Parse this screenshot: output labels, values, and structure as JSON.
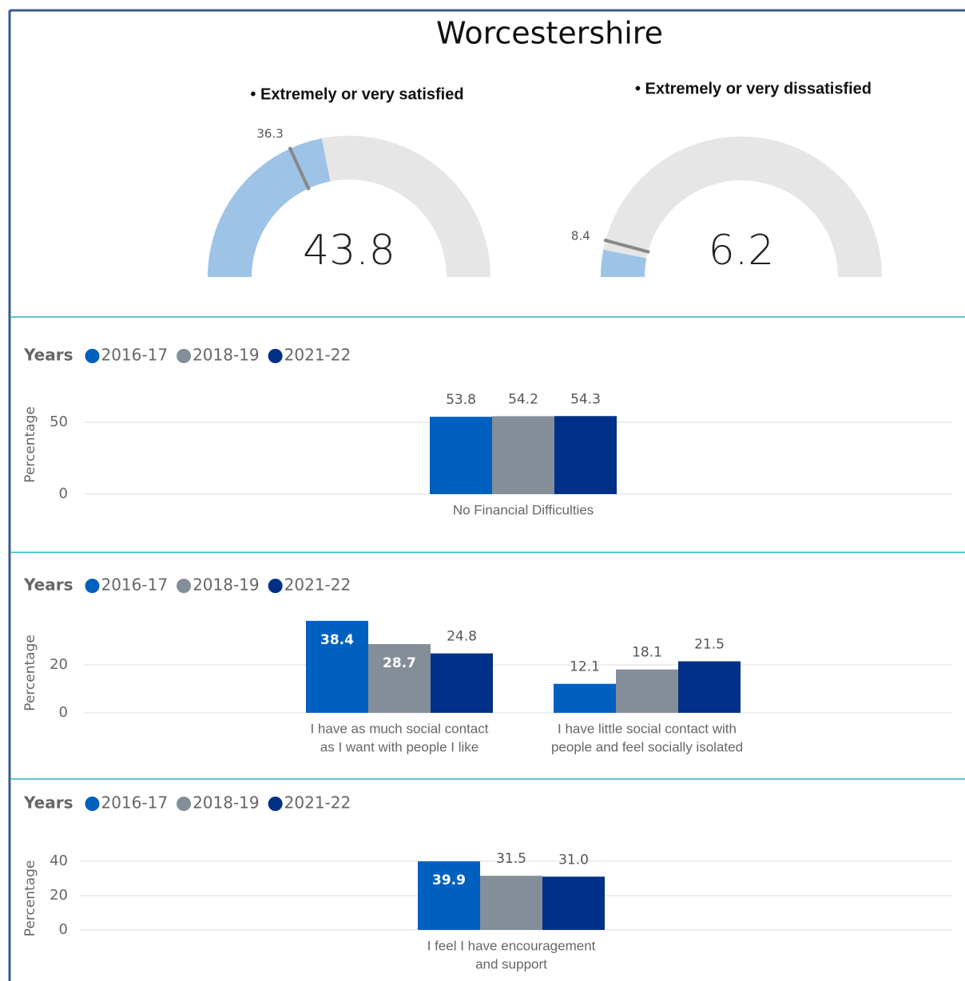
{
  "title": "Worcestershire",
  "chart_data": [
    {
      "type": "gauge",
      "title": "• Extremely or very satisfied",
      "value": 43.8,
      "target": 36.3,
      "ylim": [
        0,
        100
      ],
      "color": "#9dc3e6",
      "track_color": "#e6e6e6",
      "target_color": "#888888"
    },
    {
      "type": "gauge",
      "title": "• Extremely or very dissatisfied",
      "value": 6.2,
      "target": 8.4,
      "ylim": [
        0,
        100
      ],
      "color": "#9dc3e6",
      "track_color": "#e6e6e6",
      "target_color": "#888888"
    },
    {
      "type": "bar",
      "legend_title": "Years",
      "y_label": "Percentage",
      "categories": [
        [
          "No Financial Difficulties"
        ]
      ],
      "series": [
        {
          "name": "2016-17",
          "color": "#0060c0",
          "values": [
            53.8
          ]
        },
        {
          "name": "2018-19",
          "color": "#848e98",
          "values": [
            54.2
          ]
        },
        {
          "name": "2021-22",
          "color": "#003087",
          "values": [
            54.3
          ]
        }
      ],
      "ylim": [
        0,
        80
      ],
      "yticks": [
        0,
        50
      ],
      "grid": true
    },
    {
      "type": "bar",
      "legend_title": "Years",
      "y_label": "Percentage",
      "categories": [
        [
          "I have as much social contact",
          "as I want with people I like"
        ],
        [
          "I have little social contact with",
          "people and feel socially isolated"
        ]
      ],
      "series": [
        {
          "name": "2016-17",
          "color": "#0060c0",
          "values": [
            38.4,
            12.1
          ]
        },
        {
          "name": "2018-19",
          "color": "#848e98",
          "values": [
            28.7,
            18.1
          ]
        },
        {
          "name": "2021-22",
          "color": "#003087",
          "values": [
            24.8,
            21.5
          ]
        }
      ],
      "ylim": [
        0,
        40
      ],
      "yticks": [
        0,
        20
      ],
      "grid": true
    },
    {
      "type": "bar",
      "legend_title": "Years",
      "y_label": "Percentage",
      "categories": [
        [
          "I feel I have encouragement",
          "and support"
        ]
      ],
      "series": [
        {
          "name": "2016-17",
          "color": "#0060c0",
          "values": [
            39.9
          ]
        },
        {
          "name": "2018-19",
          "color": "#848e98",
          "values": [
            31.5
          ]
        },
        {
          "name": "2021-22",
          "color": "#003087",
          "values": [
            31.0
          ],
          "value_labels": [
            "31.0"
          ]
        }
      ],
      "ylim": [
        0,
        46
      ],
      "yticks": [
        0,
        20,
        40
      ],
      "grid": true
    }
  ]
}
